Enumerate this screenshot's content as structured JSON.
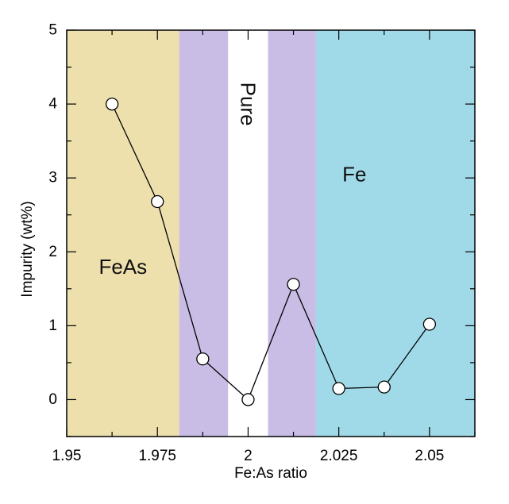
{
  "chart_data": {
    "type": "line",
    "title": "",
    "xlabel": "Fe:As ratio",
    "ylabel": "Impurity (wt%)",
    "xlim": [
      1.95,
      2.0625
    ],
    "ylim": [
      -0.5,
      5
    ],
    "x_ticks": [
      1.95,
      1.975,
      2,
      2.025,
      2.05
    ],
    "x_tick_labels": [
      "1.95",
      "1.975",
      "2",
      "2.025",
      "2.05"
    ],
    "y_ticks": [
      0,
      1,
      2,
      3,
      4,
      5
    ],
    "y_tick_labels": [
      "0",
      "1",
      "2",
      "3",
      "4",
      "5"
    ],
    "grid": false,
    "series": [
      {
        "x": [
          1.9625,
          1.975,
          1.9875,
          2.0,
          2.0125,
          2.025,
          2.0375,
          2.05
        ],
        "y": [
          4.0,
          2.68,
          0.55,
          0.0,
          1.56,
          0.15,
          0.17,
          1.02
        ],
        "color": "#000000",
        "marker": "open-circle"
      }
    ],
    "regions": [
      {
        "x0": 1.95,
        "x1": 1.981,
        "color": "#ede0ad",
        "label": "FeAs",
        "label_x": 1.9655,
        "label_y": 1.8,
        "label_rotate": 0
      },
      {
        "x0": 1.981,
        "x1": 1.9945,
        "color": "#c9bde6",
        "label": "",
        "label_x": 0,
        "label_y": 0,
        "label_rotate": 0
      },
      {
        "x0": 1.9945,
        "x1": 2.0055,
        "color": "#ffffff",
        "label": "Pure",
        "label_x": 2.0,
        "label_y": 4.0,
        "label_rotate": 90
      },
      {
        "x0": 2.0055,
        "x1": 2.0187,
        "color": "#c9bde6",
        "label": "",
        "label_x": 0,
        "label_y": 0,
        "label_rotate": 0
      },
      {
        "x0": 2.0187,
        "x1": 2.0625,
        "color": "#a0dae8",
        "label": "Fe",
        "label_x": 2.0293,
        "label_y": 3.05,
        "label_rotate": 0
      }
    ]
  }
}
